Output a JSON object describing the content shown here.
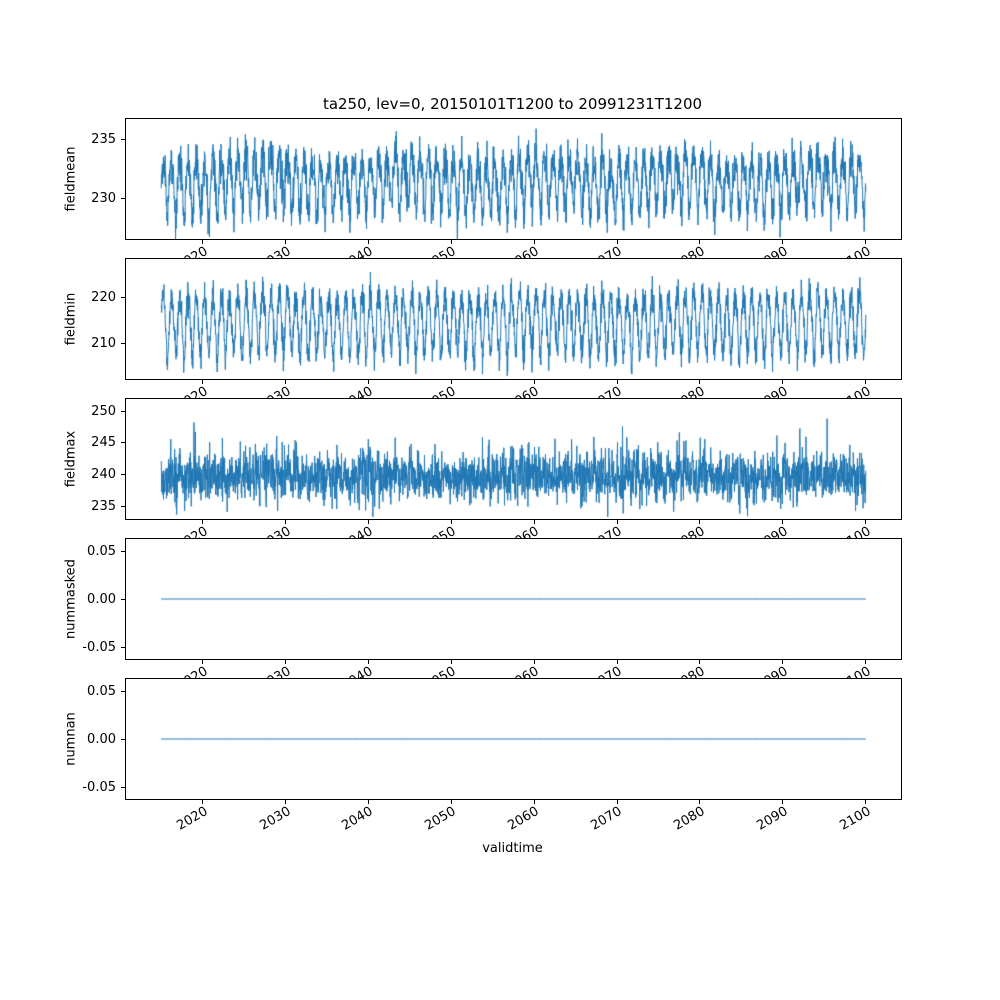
{
  "figure": {
    "title": "ta250, lev=0, 20150101T1200 to 20991231T1200",
    "xlabel": "validtime",
    "line_color": "#1f77b4",
    "background_color": "#ffffff",
    "xlim": [
      2010.75,
      2104.25
    ],
    "xticks": [
      2020,
      2030,
      2040,
      2050,
      2060,
      2070,
      2080,
      2090,
      2100
    ],
    "xtick_labels": [
      "2020",
      "2030",
      "2040",
      "2050",
      "2060",
      "2070",
      "2080",
      "2090",
      "2100"
    ]
  },
  "chart_data": [
    {
      "type": "line",
      "ylabel": "fieldmean",
      "x_range": [
        2015.0,
        2100.0
      ],
      "ylim": [
        226.5,
        236.8
      ],
      "yticks": [
        230,
        235
      ],
      "ytick_labels": [
        "230",
        "235"
      ],
      "y_summary": {
        "approx_mean": 231.5,
        "approx_min": 227.0,
        "approx_max": 236.3
      },
      "gen": {
        "kind": "seasonal",
        "n": 3100,
        "base": 231.4,
        "amp": 2.2,
        "harm2": 0.5,
        "wander": 0.35,
        "noise": 0.85,
        "spike_p": 0,
        "spike_min": 0,
        "spike_max": 0,
        "seed": 11
      }
    },
    {
      "type": "line",
      "ylabel": "fieldmin",
      "x_range": [
        2015.0,
        2100.0
      ],
      "ylim": [
        202.3,
        228.4
      ],
      "yticks": [
        210,
        220
      ],
      "ytick_labels": [
        "210",
        "220"
      ],
      "y_summary": {
        "approx_mean": 214.5,
        "approx_min": 203.5,
        "approx_max": 227.2
      },
      "gen": {
        "kind": "seasonal",
        "n": 3100,
        "base": 214.5,
        "amp": 6.3,
        "harm2": 0.8,
        "wander": 0.4,
        "noise": 1.6,
        "spike_p": 0,
        "spike_min": 0,
        "spike_max": 0,
        "seed": 23
      }
    },
    {
      "type": "line",
      "ylabel": "fieldmax",
      "x_range": [
        2015.0,
        2100.0
      ],
      "ylim": [
        233.0,
        251.9
      ],
      "yticks": [
        235,
        240,
        245,
        250
      ],
      "ytick_labels": [
        "235",
        "240",
        "245",
        "250"
      ],
      "y_summary": {
        "approx_mean": 240.3,
        "approx_min": 233.9,
        "approx_max": 251.0
      },
      "gen": {
        "kind": "seasonal",
        "n": 3100,
        "base": 239.7,
        "amp": 0.7,
        "harm2": 0.3,
        "wander": 0.3,
        "noise": 1.9,
        "spike_p": 0.01,
        "spike_min": 2.0,
        "spike_max": 8.5,
        "seed": 37
      }
    },
    {
      "type": "line",
      "ylabel": "nummasked",
      "x_range": [
        2015.0,
        2100.0
      ],
      "ylim": [
        -0.0625,
        0.0625
      ],
      "yticks": [
        -0.05,
        0,
        0.05
      ],
      "ytick_labels": [
        "-0.05",
        "0.00",
        "0.05"
      ],
      "y_summary": {
        "constant_value": 0.0
      },
      "gen": {
        "kind": "constant",
        "n": 200,
        "value": 0.0
      }
    },
    {
      "type": "line",
      "ylabel": "numnan",
      "x_range": [
        2015.0,
        2100.0
      ],
      "ylim": [
        -0.0625,
        0.0625
      ],
      "yticks": [
        -0.05,
        0,
        0.05
      ],
      "ytick_labels": [
        "-0.05",
        "0.00",
        "0.05"
      ],
      "y_summary": {
        "constant_value": 0.0
      },
      "gen": {
        "kind": "constant",
        "n": 200,
        "value": 0.0
      }
    }
  ]
}
